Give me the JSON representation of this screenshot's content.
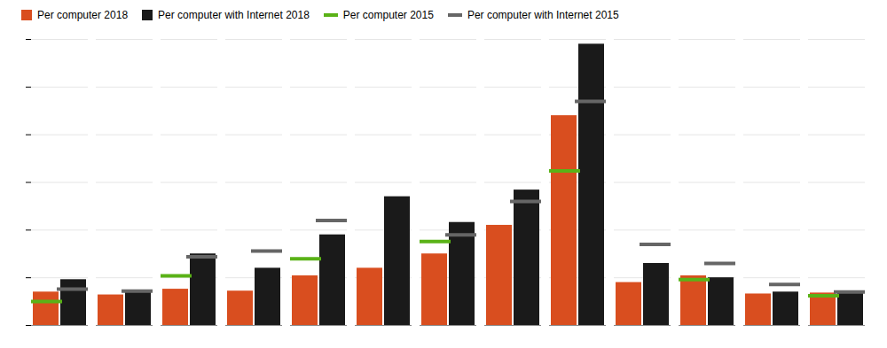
{
  "chart_data": {
    "type": "bar",
    "categories": [
      null,
      null,
      null,
      null,
      null,
      null,
      null,
      null,
      null,
      null,
      null,
      null,
      null
    ],
    "series": [
      {
        "name": "Per computer 2018",
        "type": "bar",
        "color": "#d94e1f",
        "values": [
          3.5,
          3.2,
          3.8,
          3.6,
          5.2,
          6.0,
          7.5,
          10.5,
          22.0,
          4.5,
          5.2,
          3.3,
          3.4
        ]
      },
      {
        "name": "Per computer with Internet 2018",
        "type": "bar",
        "color": "#1a1a1a",
        "values": [
          4.8,
          3.5,
          7.5,
          6.0,
          9.5,
          13.5,
          10.8,
          14.2,
          29.5,
          6.5,
          5.0,
          3.5,
          3.6
        ]
      },
      {
        "name": "Per computer 2015",
        "type": "tick",
        "color": "#5ab217",
        "values": [
          2.5,
          null,
          5.2,
          null,
          7.0,
          null,
          8.8,
          null,
          16.2,
          null,
          4.8,
          null,
          3.1
        ]
      },
      {
        "name": "Per computer with Internet 2015",
        "type": "tick",
        "color": "#666666",
        "values": [
          3.8,
          3.6,
          7.2,
          7.8,
          11.0,
          null,
          9.5,
          13.0,
          23.5,
          8.5,
          6.5,
          4.3,
          3.5
        ]
      }
    ],
    "ylim": [
      0,
      30
    ],
    "yticks": [
      0,
      5,
      10,
      15,
      20,
      25,
      30
    ],
    "grid": true,
    "tick_labels": false,
    "legend": "upper left"
  }
}
